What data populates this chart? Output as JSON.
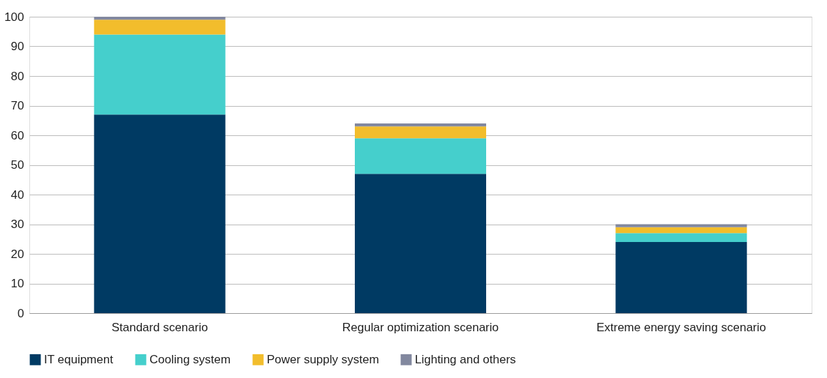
{
  "chart_data": {
    "type": "bar",
    "stacked": true,
    "categories": [
      "Standard scenario",
      "Regular optimization scenario",
      "Extreme energy saving scenario"
    ],
    "series": [
      {
        "name": "IT equipment",
        "color": "#003a63",
        "values": [
          67,
          47,
          24
        ]
      },
      {
        "name": "Cooling system",
        "color": "#45cfcc",
        "values": [
          27,
          12,
          3
        ]
      },
      {
        "name": "Power supply system",
        "color": "#f2bd2c",
        "values": [
          5,
          4,
          2
        ]
      },
      {
        "name": "Lighting and others",
        "color": "#82889f",
        "values": [
          1,
          1,
          1
        ]
      }
    ],
    "ylim": [
      0,
      100
    ],
    "yticks": [
      0,
      10,
      20,
      30,
      40,
      50,
      60,
      70,
      80,
      90,
      100
    ],
    "grid": "y",
    "legend": "bottom"
  }
}
